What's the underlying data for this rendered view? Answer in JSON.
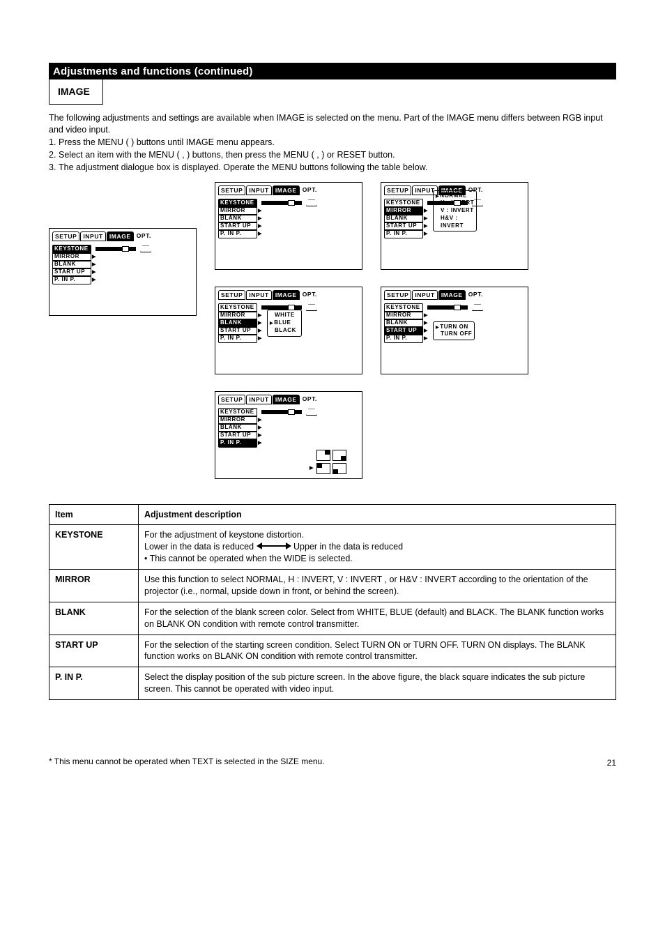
{
  "heading": "Adjustments and functions (continued)",
  "menu_box": "IMAGE",
  "steps": {
    "intro": "The following adjustments and settings are available when IMAGE is selected on the menu. Part of the IMAGE menu differs between RGB input and video input.",
    "s1": "Press the MENU (       ) buttons until IMAGE menu appears.",
    "s2": "Select an item with the MENU (     ,     ) buttons, then press the MENU (     ,     ) or RESET button.",
    "s3": "The adjustment dialogue box is displayed. Operate the MENU buttons following the table below."
  },
  "tabs": [
    "SETUP",
    "INPUT",
    "IMAGE",
    "OPT."
  ],
  "menu_items": [
    "KEYSTONE",
    "MIRROR",
    "BLANK",
    "START UP",
    "P. IN P."
  ],
  "mirror_opts": [
    "NORMAL",
    "H : INVERT",
    "V : INVERT",
    "H&V :",
    "INVERT"
  ],
  "blank_opts": [
    "WHITE",
    "BLUE",
    "BLACK"
  ],
  "startup_opts": [
    "TURN ON",
    "TURN OFF"
  ],
  "table": {
    "h1": "Item",
    "h2": "Adjustment description",
    "rows": [
      {
        "name": "KEYSTONE",
        "desc_prefix": "For the adjustment of keystone distortion.",
        "desc_1a": "Lower in the data is reduced",
        "desc_1b": "Upper in the data is reduced",
        "note": "• This cannot be operated when the WIDE is selected."
      },
      {
        "name": "MIRROR",
        "desc": "Use this function to select NORMAL, H : INVERT, V : INVERT , or H&V : INVERT according to the orientation of the projector (i.e., normal, upside down in front, or behind the screen)."
      },
      {
        "name": "BLANK",
        "desc": "For the selection of the blank screen color. Select from WHITE, BLUE (default) and BLACK. The BLANK function works on BLANK ON condition with remote control transmitter."
      },
      {
        "name": "START UP",
        "desc": "For the selection of the starting screen condition. Select TURN ON or TURN OFF. TURN ON displays. The BLANK function works on BLANK ON condition with remote control transmitter."
      },
      {
        "name": "P. IN P.",
        "desc": "Select the display position of the sub picture screen.  In the above figure, the black square indicates the sub picture screen. This cannot be operated with video input."
      }
    ]
  },
  "footer_note": "*  This menu cannot be operated when TEXT is selected in the SIZE menu.",
  "page_number": "21"
}
